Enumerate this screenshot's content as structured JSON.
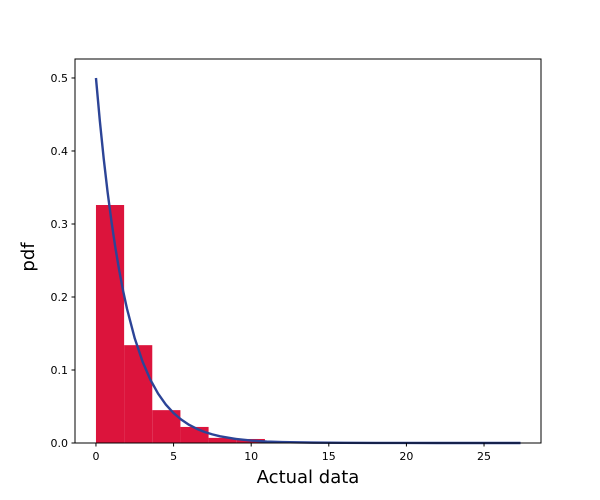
{
  "chart_data": {
    "type": "histogram_with_line",
    "title": "",
    "xlabel": "Actual data",
    "ylabel": "pdf",
    "xlim": [
      -1.35,
      28.67
    ],
    "ylim": [
      0,
      0.526
    ],
    "x_ticks": [
      0,
      5,
      10,
      15,
      20,
      25
    ],
    "x_tick_labels": [
      "0",
      "5",
      "10",
      "15",
      "20",
      "25"
    ],
    "y_ticks": [
      0,
      0.1,
      0.2,
      0.3,
      0.4,
      0.5
    ],
    "y_tick_labels": [
      "0.0",
      "0.1",
      "0.2",
      "0.3",
      "0.4",
      "0.5"
    ],
    "grid": false,
    "legend": false,
    "background_color": "#ffffff",
    "axis_color": "#000000",
    "histogram": {
      "color": "#DC143C",
      "bin_edges": [
        0,
        1.814,
        3.628,
        5.442,
        7.256,
        9.07,
        10.884
      ],
      "densities": [
        0.326,
        0.134,
        0.045,
        0.022,
        0.007,
        0.0055
      ]
    },
    "fit_line": {
      "color": "#2C4497",
      "stroke_width": 2.4,
      "x": [
        0,
        0.25,
        0.5,
        0.75,
        1,
        1.25,
        1.5,
        1.75,
        2,
        2.5,
        3,
        3.5,
        4,
        4.5,
        5,
        5.5,
        6,
        6.5,
        7,
        7.5,
        8,
        9,
        10,
        11,
        12,
        14,
        16,
        18,
        20,
        22,
        24,
        26,
        27.35
      ],
      "y": [
        0.5,
        0.4412,
        0.3894,
        0.3436,
        0.3033,
        0.2676,
        0.2362,
        0.2084,
        0.1839,
        0.1433,
        0.1116,
        0.0869,
        0.0677,
        0.0527,
        0.041,
        0.032,
        0.0249,
        0.0194,
        0.0151,
        0.0118,
        0.0092,
        0.0056,
        0.0034,
        0.002,
        0.0012,
        0.0005,
        0.0002,
        0.0001,
        4e-05,
        1e-05,
        0.0,
        0.0,
        0.0
      ]
    }
  }
}
